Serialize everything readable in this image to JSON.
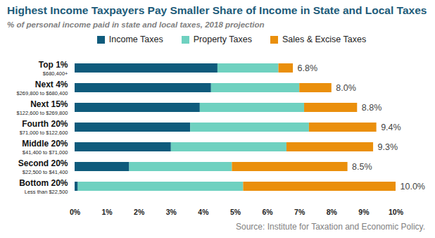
{
  "chart_data": {
    "type": "bar",
    "orientation": "horizontal",
    "stacked": true,
    "grid": false,
    "title": "Highest Income Taxpayers Pay Smaller Share of Income in State and Local Taxes",
    "subtitle": "% of personal income paid in state and local taxes, 2018 projection",
    "source": "Source: Institute for Taxation and Economic Policy.",
    "categories": [
      "Top 1%",
      "Next 4%",
      "Next 15%",
      "Fourth 20%",
      "Middle 20%",
      "Second 20%",
      "Bottom 20%"
    ],
    "category_ranges": [
      "$680,400+",
      "$269,800 to $680,400",
      "$122,600 to $269,800",
      "$71,000 to $122,600",
      "$41,400 to $71,000",
      "$22,500 to $41,400",
      "Less than $22,500"
    ],
    "series": [
      {
        "name": "Income Taxes",
        "color": "#0f5b7c",
        "values": [
          4.45,
          4.25,
          3.9,
          3.6,
          3.0,
          1.7,
          0.1
        ]
      },
      {
        "name": "Property Taxes",
        "color": "#6fd1c0",
        "values": [
          1.9,
          2.75,
          3.25,
          3.7,
          3.6,
          3.2,
          5.15
        ]
      },
      {
        "name": "Sales & Excise Taxes",
        "color": "#ea8f0c",
        "values": [
          0.45,
          1.0,
          1.65,
          2.1,
          2.7,
          3.6,
          4.75
        ]
      }
    ],
    "totals": [
      6.8,
      8.0,
      8.8,
      9.4,
      9.3,
      8.5,
      10.0
    ],
    "total_labels": [
      "6.8%",
      "8.0%",
      "8.8%",
      "9.4%",
      "9.3%",
      "8.5%",
      "10.0%"
    ],
    "xlim": [
      0,
      10
    ],
    "xticks": [
      {
        "value": 0,
        "label": "0%"
      },
      {
        "value": 1,
        "label": "1%"
      },
      {
        "value": 2,
        "label": "2%"
      },
      {
        "value": 3,
        "label": "3%"
      },
      {
        "value": 4,
        "label": "4%"
      },
      {
        "value": 5,
        "label": "5%"
      },
      {
        "value": 6,
        "label": "6%"
      },
      {
        "value": 7,
        "label": "7%"
      },
      {
        "value": 8,
        "label": "8%"
      },
      {
        "value": 9,
        "label": "9%"
      },
      {
        "value": 10,
        "label": "10%"
      }
    ]
  }
}
